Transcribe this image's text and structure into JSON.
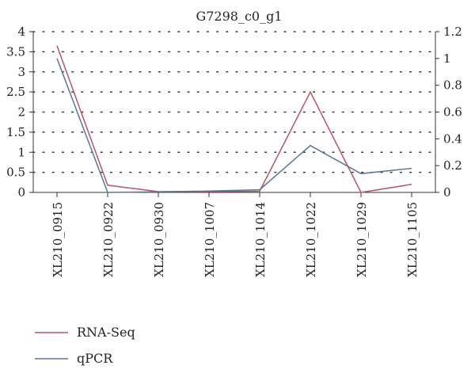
{
  "chart_data": {
    "type": "line",
    "title": "G7298_c0_g1",
    "categories": [
      "XL210_0915",
      "XL210_0922",
      "XL210_0930",
      "XL210_1007",
      "XL210_1014",
      "XL210_1022",
      "XL210_1029",
      "XL210_1105"
    ],
    "y_left": {
      "ylim": [
        0,
        4
      ],
      "ticks": [
        "0",
        "0.5",
        "1",
        "1.5",
        "2",
        "2.5",
        "3",
        "3.5",
        "4"
      ]
    },
    "y_right": {
      "ylim": [
        0,
        1.2
      ],
      "ticks": [
        "0",
        "0.2",
        "0.4",
        "0.6",
        "0.8",
        "1",
        "1.2"
      ]
    },
    "grid": true,
    "legend_position": "bottom-left",
    "series": [
      {
        "name": "RNA-Seq",
        "axis": "left",
        "color": "#b5566a",
        "values": [
          3.65,
          0.18,
          0.02,
          0.02,
          0.03,
          2.5,
          0.0,
          0.2
        ]
      },
      {
        "name": "qPCR",
        "axis": "right",
        "color": "#5b7696",
        "values": [
          1.0,
          0.0,
          0.005,
          0.01,
          0.02,
          0.35,
          0.14,
          0.18
        ]
      }
    ]
  }
}
